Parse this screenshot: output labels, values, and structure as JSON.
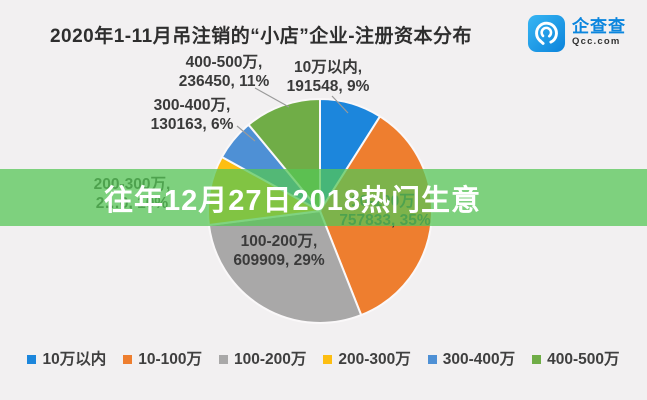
{
  "page": {
    "bg_color": "#F2F0F1"
  },
  "header": {
    "title": "2020年1-11月吊注销的“小店”企业-注册资本分布"
  },
  "watermark": {
    "brand": "企查查",
    "domain": "Qcc.com",
    "icon": "qcc-swirl-icon",
    "brand_color": "#0C86DE",
    "tile_gradient": [
      "#38B6F3",
      "#0B83DB"
    ]
  },
  "overlay_banner": {
    "text": "往年12月27日2018热门生意",
    "bg_rgba": "rgba(85,198,85,0.74)",
    "text_color": "#FFFFFF"
  },
  "chart_data": {
    "type": "pie",
    "title": "2020年1-11月吊注销的“小店”企业-注册资本分布",
    "categories": [
      "10万以内",
      "10-100万",
      "100-200万",
      "200-300万",
      "300-400万",
      "400-500万"
    ],
    "values_pct": [
      9,
      35,
      29,
      10,
      6,
      11
    ],
    "counts": [
      191548,
      757833,
      609909,
      null,
      130163,
      236450
    ],
    "slice_labels": [
      {
        "line1": "10万以内,",
        "line2": "191548, 9%"
      },
      {
        "line1": "10-100万,",
        "line2": "757833, 35%"
      },
      {
        "line1": "100-200万,",
        "line2": "609909, 29%"
      },
      {
        "line1": "200-300万,",
        "line2": "2…0, 10%"
      },
      {
        "line1": "300-400万,",
        "line2": "130163, 6%"
      },
      {
        "line1": "400-500万,",
        "line2": "236450, 11%"
      }
    ],
    "colors": [
      "#1C86DC",
      "#EE7E2F",
      "#A9A8A8",
      "#FDBE12",
      "#4E90D5",
      "#70AD47"
    ],
    "start_angle_deg": 0,
    "clockwise": true,
    "grid": false,
    "legend_position": "bottom"
  },
  "legend": {
    "items": [
      {
        "label": "10万以内",
        "color": "#1C86DC"
      },
      {
        "label": "10-100万",
        "color": "#EE7E2F"
      },
      {
        "label": "100-200万",
        "color": "#A9A8A8"
      },
      {
        "label": "200-300万",
        "color": "#FDBE12"
      },
      {
        "label": "300-400万",
        "color": "#4E90D5"
      },
      {
        "label": "400-500万",
        "color": "#70AD47"
      }
    ]
  }
}
